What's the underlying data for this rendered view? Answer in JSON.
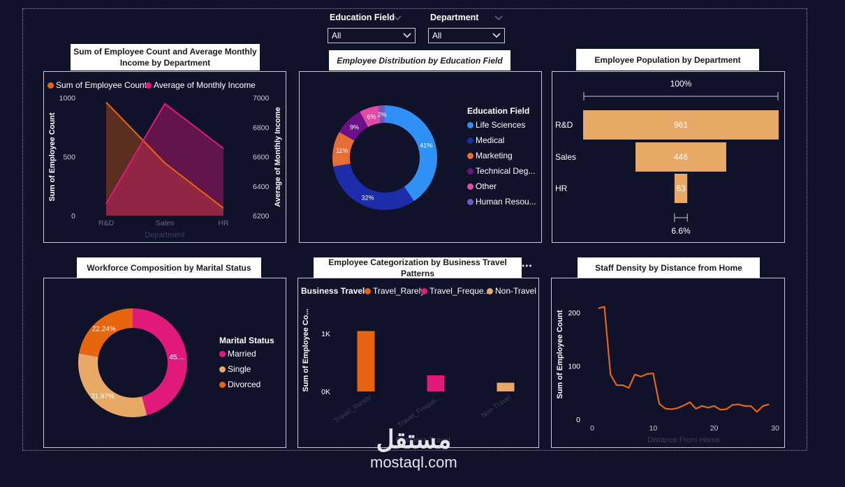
{
  "filters": {
    "education": {
      "label": "Education Field",
      "value": "All"
    },
    "department": {
      "label": "Department",
      "value": "All"
    }
  },
  "panels": {
    "p1": {
      "title": "Sum of Employee Count and Average Monthly Income by Department"
    },
    "p2": {
      "title": "Employee Distribution by Education Field"
    },
    "p3": {
      "title": "Employee Population by Department"
    },
    "p4": {
      "title": "Workforce Composition by Marital Status"
    },
    "p5": {
      "title": "Employee Categorization by Business Travel Patterns"
    },
    "p6": {
      "title": "Staff Density by Distance from Home"
    }
  },
  "more_options": "•••",
  "chart_data": [
    {
      "id": "employee-count-income",
      "type": "area",
      "title": "Sum of Employee Count and Average Monthly Income by Department",
      "categories": [
        "R&D",
        "Sales",
        "HR"
      ],
      "xlabel": "Department",
      "ylabel": "Sum of Employee Count",
      "y2label": "Average of Monthly Income",
      "yticks": [
        "0",
        "500",
        "1000"
      ],
      "y2ticks": [
        "6200",
        "6400",
        "6600",
        "6800",
        "7000"
      ],
      "ylim": [
        0,
        1000
      ],
      "y2lim": [
        6200,
        7000
      ],
      "series": [
        {
          "name": "Sum of Employee Count",
          "axis": "left",
          "values": [
            961,
            446,
            63
          ],
          "color": "#e8650f"
        },
        {
          "name": "Average of Monthly Income",
          "axis": "right",
          "values": [
            6281,
            6959,
            6655
          ],
          "color": "#e0197a"
        }
      ],
      "legend": "top-left"
    },
    {
      "id": "education-field",
      "type": "pie",
      "donut": true,
      "title": "Employee Distribution by Education Field",
      "legend_title": "Education Field",
      "slices": [
        {
          "label": "Life Sciences",
          "value": 41,
          "text": "41%",
          "color": "#2f90f5"
        },
        {
          "label": "Medical",
          "value": 32,
          "text": "32%",
          "color": "#1d2ca8"
        },
        {
          "label": "Marketing",
          "value": 11,
          "text": "11%",
          "color": "#e86c35"
        },
        {
          "label": "Technical Deg...",
          "value": 9,
          "text": "9%",
          "color": "#6b1089"
        },
        {
          "label": "Other",
          "value": 6,
          "text": "6%",
          "color": "#e24aa6"
        },
        {
          "label": "Human Resou...",
          "value": 2,
          "text": "2%",
          "color": "#6e5ac0"
        }
      ],
      "legend": "right"
    },
    {
      "id": "department-funnel",
      "type": "bar",
      "orientation": "funnel",
      "title": "Employee Population by Department",
      "categories": [
        "R&D",
        "Sales",
        "HR"
      ],
      "values": [
        961,
        446,
        63
      ],
      "top_percent": "100%",
      "bottom_percent": "6.6%",
      "color": "#e8a866"
    },
    {
      "id": "marital-status",
      "type": "pie",
      "donut": true,
      "title": "Workforce Composition by Marital Status",
      "legend_title": "Marital Status",
      "slices": [
        {
          "label": "Married",
          "value": 45.79,
          "text": "45....",
          "color": "#e0197a"
        },
        {
          "label": "Single",
          "value": 31.97,
          "text": "31.97%",
          "color": "#e8a866"
        },
        {
          "label": "Divorced",
          "value": 22.24,
          "text": "22.24%",
          "color": "#e8650f"
        }
      ],
      "legend": "right"
    },
    {
      "id": "business-travel",
      "type": "bar",
      "title": "Employee Categorization by Business Travel Patterns",
      "legend_title": "Business Travel",
      "categories": [
        "Travel_Rarely",
        "Travel_Freque...",
        "Non-Travel"
      ],
      "legend_labels": [
        "Travel_Rarely",
        "Travel_Freque...",
        "Non-Travel"
      ],
      "values": [
        1043,
        277,
        150
      ],
      "colors": [
        "#e8650f",
        "#e0197a",
        "#e8a866"
      ],
      "ylabel": "Sum of Employee Co...",
      "xlabel": "Business Travel",
      "yticks": [
        "0K",
        "1K"
      ],
      "ylim": [
        0,
        1000
      ],
      "legend": "top"
    },
    {
      "id": "distance-from-home",
      "type": "line",
      "title": "Staff Density by Distance from Home",
      "xlabel": "Distance From Home",
      "ylabel": "Sum of Employee Count",
      "xticks": [
        "0",
        "10",
        "20",
        "30"
      ],
      "yticks": [
        "0",
        "100",
        "200"
      ],
      "xlim": [
        -1,
        30
      ],
      "ylim": [
        0,
        230
      ],
      "x": [
        1,
        2,
        3,
        4,
        5,
        6,
        7,
        8,
        9,
        10,
        11,
        12,
        13,
        14,
        15,
        16,
        17,
        18,
        19,
        20,
        21,
        22,
        23,
        24,
        25,
        26,
        27,
        28,
        29
      ],
      "values": [
        208,
        211,
        84,
        64,
        64,
        59,
        84,
        80,
        85,
        86,
        29,
        20,
        19,
        21,
        26,
        32,
        20,
        25,
        22,
        25,
        18,
        19,
        27,
        28,
        25,
        25,
        14,
        25,
        28
      ],
      "color": "#e8650f"
    }
  ],
  "watermark": {
    "arabic": "مستقل",
    "latin": "mostaql.com"
  }
}
